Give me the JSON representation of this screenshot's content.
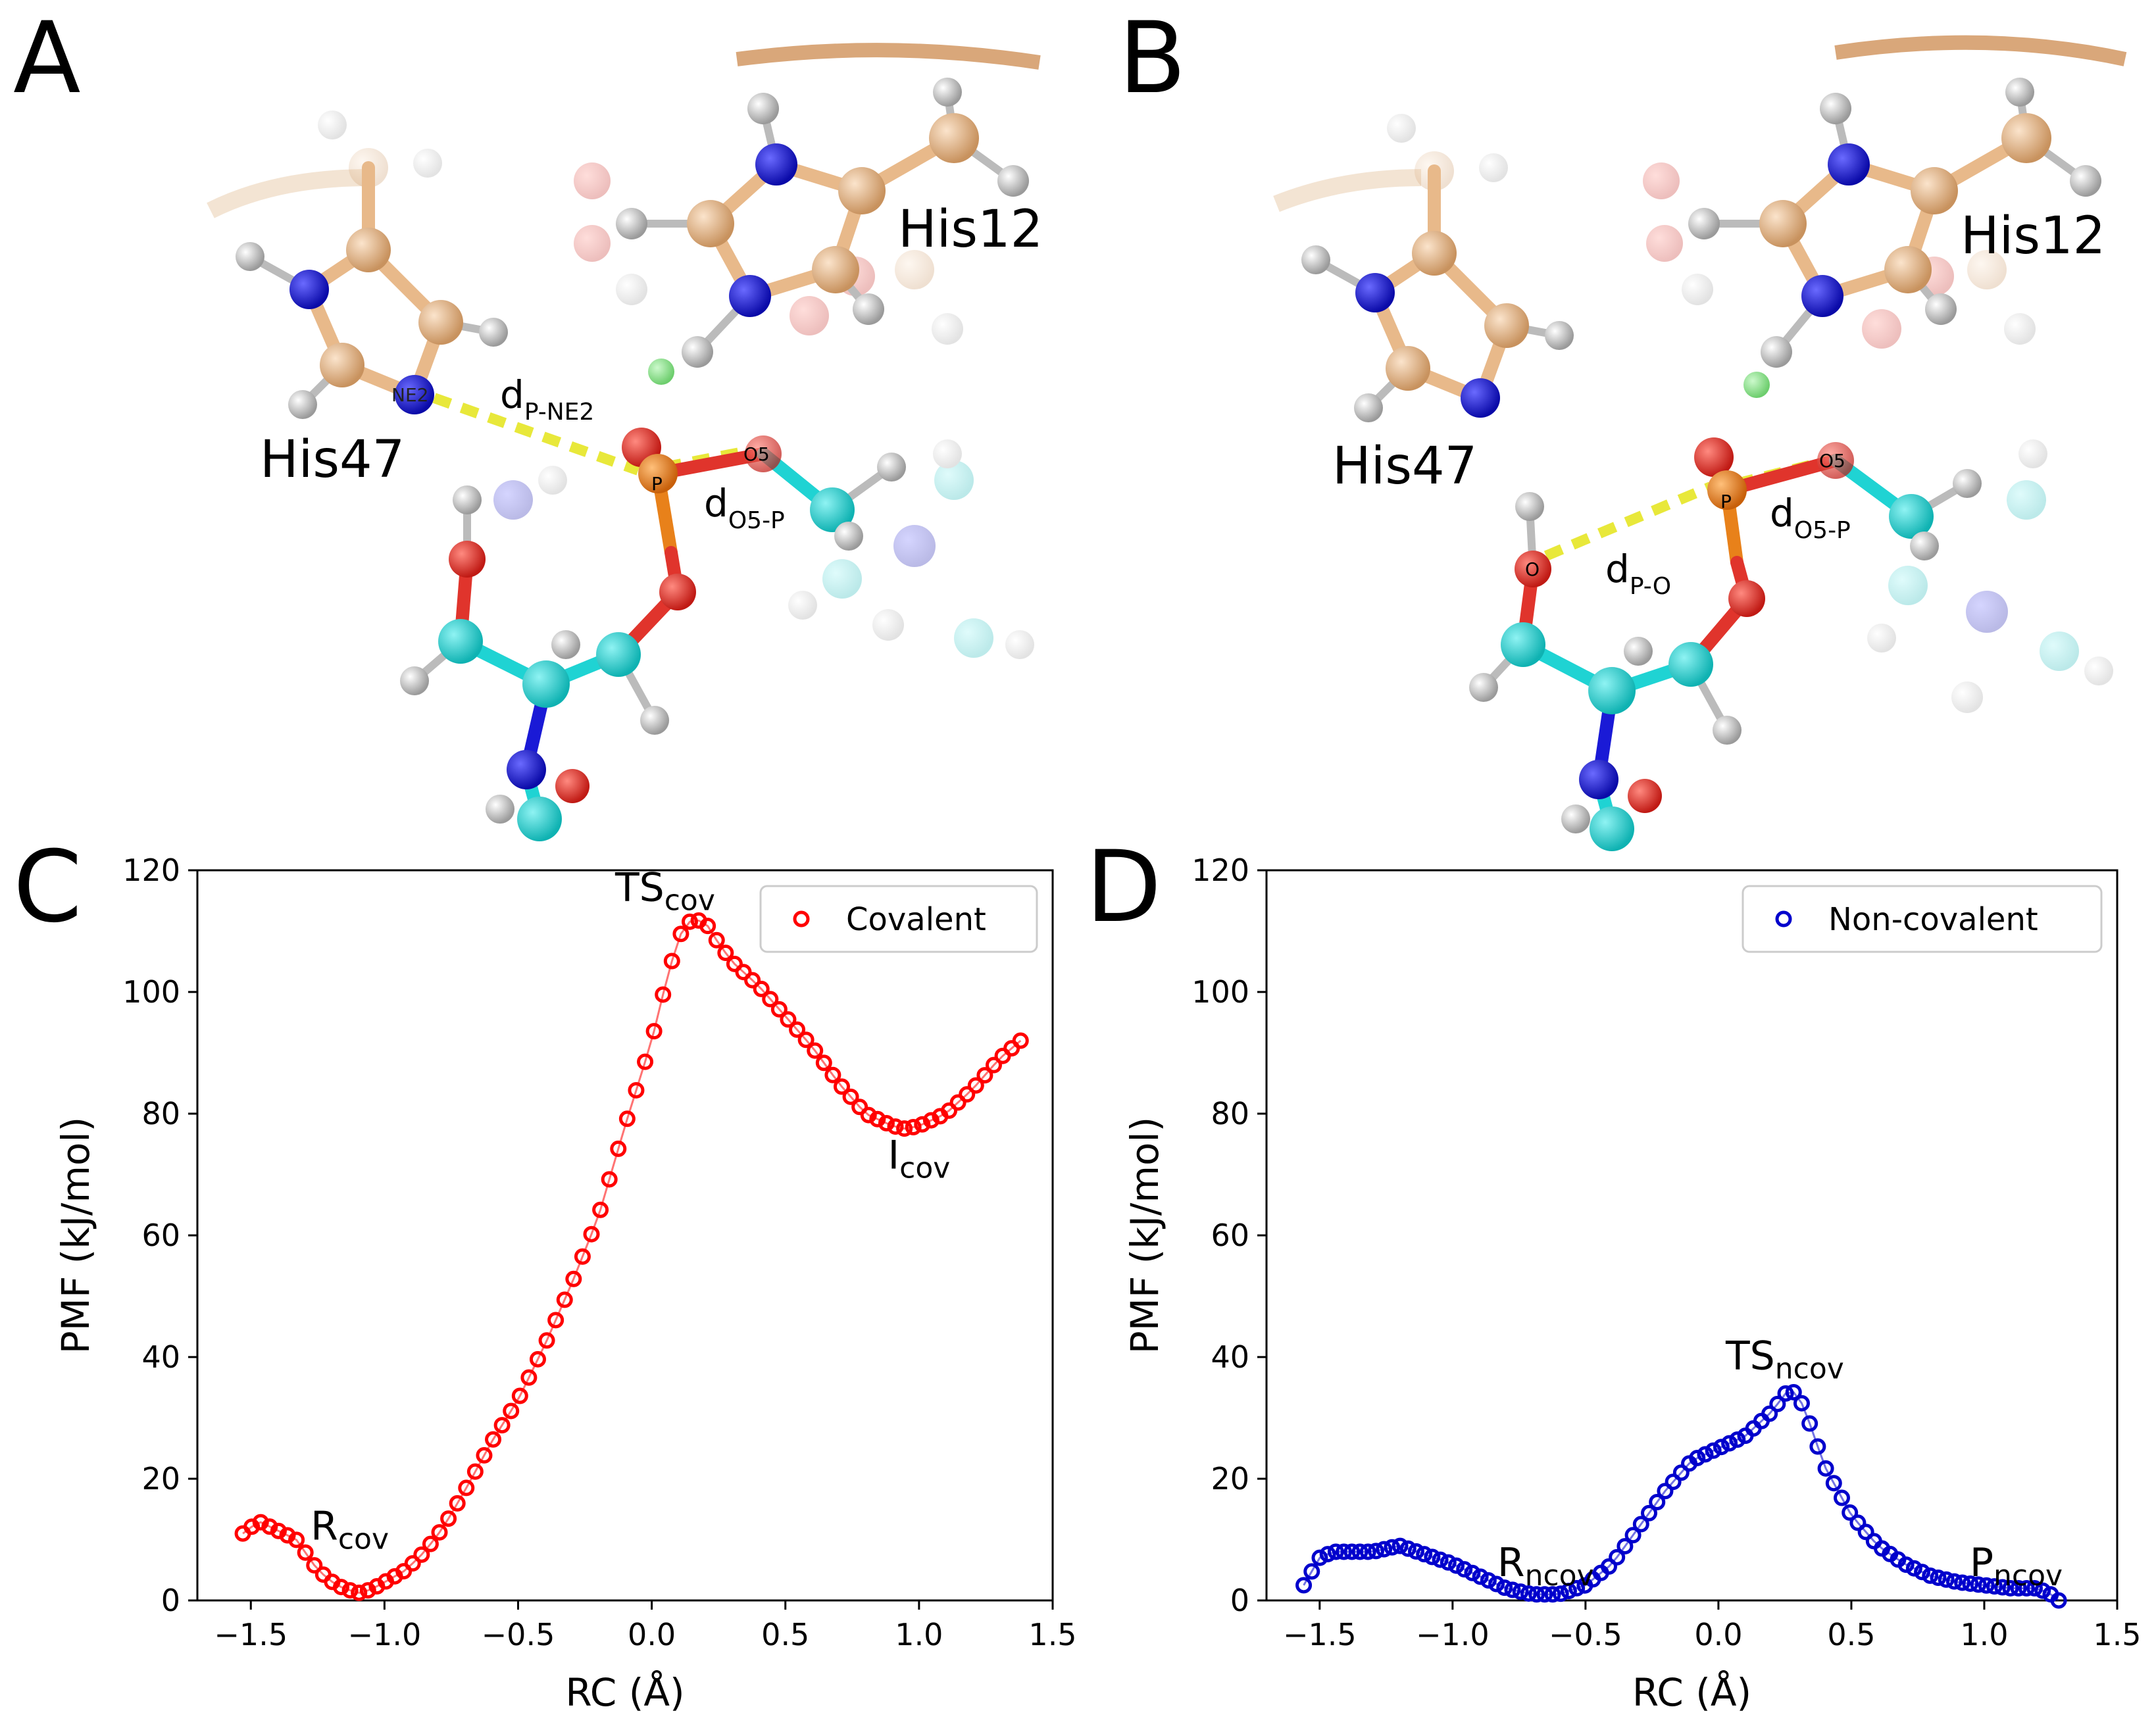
{
  "panel_letters": {
    "a": "A",
    "b": "B",
    "c": "C",
    "d": "D"
  },
  "colors": {
    "carbon_tan": "#e8b98a",
    "carbon_cyan": "#1fd3d3",
    "nitrogen": "#1a1ad6",
    "oxygen": "#e0342c",
    "phosphorus": "#e8811a",
    "hydrogen": "#e6e6e6",
    "chlorine": "#4cd64c",
    "distance": "#e8e83a",
    "backbone": "#d9a77a",
    "covalent": "#ff0000",
    "noncovalent": "#0000cc"
  },
  "structure_a": {
    "his12": "His12",
    "his47": "His47",
    "atoms": {
      "ne2": "NE2",
      "p": "P",
      "o5": "O5"
    },
    "d1": {
      "main": "d",
      "sub": "P-NE2"
    },
    "d2": {
      "main": "d",
      "sub": "O5-P"
    }
  },
  "structure_b": {
    "his12": "His12",
    "his47": "His47",
    "atoms": {
      "p": "P",
      "o5": "O5",
      "o": "O"
    },
    "d1": {
      "main": "d",
      "sub": "O5-P"
    },
    "d2": {
      "main": "d",
      "sub": "P-O"
    }
  },
  "chart_data": [
    {
      "type": "scatter",
      "panel": "C",
      "xlabel": "RC (Å)",
      "ylabel": "PMF (kJ/mol)",
      "xlim": [
        -1.7,
        1.5
      ],
      "ylim": [
        0,
        120
      ],
      "xticks": [
        "−1.5",
        "−1.0",
        "−0.5",
        "0.0",
        "0.5",
        "1.0",
        "1.5"
      ],
      "xtick_values": [
        -1.5,
        -1.0,
        -0.5,
        0.0,
        0.5,
        1.0,
        1.5
      ],
      "yticks": [
        "0",
        "20",
        "40",
        "60",
        "80",
        "100",
        "120"
      ],
      "ytick_values": [
        0,
        20,
        40,
        60,
        80,
        100,
        120
      ],
      "legend": {
        "label": "Covalent",
        "position": "top-right"
      },
      "color": "#ff0000",
      "annotations": [
        {
          "main": "TS",
          "sub": "cov",
          "x": 0.05,
          "y": 115
        },
        {
          "main": "R",
          "sub": "cov",
          "x": -1.13,
          "y": 10
        },
        {
          "main": "I",
          "sub": "cov",
          "x": 1.0,
          "y": 71
        }
      ],
      "anchors": [
        [
          -1.53,
          11
        ],
        [
          -1.47,
          13
        ],
        [
          -1.4,
          11.5
        ],
        [
          -1.33,
          10
        ],
        [
          -1.25,
          5
        ],
        [
          -1.18,
          2.5
        ],
        [
          -1.1,
          1.2
        ],
        [
          -1.05,
          1.8
        ],
        [
          -1.0,
          3
        ],
        [
          -0.92,
          5
        ],
        [
          -0.85,
          8
        ],
        [
          -0.78,
          12
        ],
        [
          -0.7,
          18
        ],
        [
          -0.6,
          26
        ],
        [
          -0.5,
          33
        ],
        [
          -0.4,
          42
        ],
        [
          -0.3,
          52
        ],
        [
          -0.2,
          63
        ],
        [
          -0.1,
          78
        ],
        [
          0.0,
          92
        ],
        [
          0.05,
          101
        ],
        [
          0.1,
          109
        ],
        [
          0.15,
          112
        ],
        [
          0.2,
          111.5
        ],
        [
          0.25,
          108
        ],
        [
          0.3,
          105
        ],
        [
          0.4,
          101
        ],
        [
          0.5,
          96
        ],
        [
          0.6,
          91
        ],
        [
          0.7,
          85
        ],
        [
          0.8,
          80
        ],
        [
          0.9,
          78
        ],
        [
          0.95,
          77.5
        ],
        [
          1.0,
          78
        ],
        [
          1.1,
          80
        ],
        [
          1.2,
          84
        ],
        [
          1.3,
          89
        ],
        [
          1.38,
          92
        ]
      ],
      "n_points": 88
    },
    {
      "type": "scatter",
      "panel": "D",
      "xlabel": "RC (Å)",
      "ylabel": "PMF (kJ/mol)",
      "xlim": [
        -1.7,
        1.5
      ],
      "ylim": [
        0,
        120
      ],
      "xticks": [
        "−1.5",
        "−1.0",
        "−0.5",
        "0.0",
        "0.5",
        "1.0",
        "1.5"
      ],
      "xtick_values": [
        -1.5,
        -1.0,
        -0.5,
        0.0,
        0.5,
        1.0,
        1.5
      ],
      "yticks": [
        "0",
        "20",
        "40",
        "60",
        "80",
        "100",
        "120"
      ],
      "ytick_values": [
        0,
        20,
        40,
        60,
        80,
        100,
        120
      ],
      "legend": {
        "label": "Non-covalent",
        "position": "top-right"
      },
      "color": "#0000cc",
      "annotations": [
        {
          "main": "TS",
          "sub": "ncov",
          "x": 0.25,
          "y": 38
        },
        {
          "main": "R",
          "sub": "ncov",
          "x": -0.65,
          "y": 4
        },
        {
          "main": "P",
          "sub": "ncov",
          "x": 1.12,
          "y": 4
        }
      ],
      "anchors": [
        [
          -1.56,
          2.5
        ],
        [
          -1.5,
          7
        ],
        [
          -1.45,
          8
        ],
        [
          -1.4,
          8
        ],
        [
          -1.3,
          8
        ],
        [
          -1.2,
          9
        ],
        [
          -1.1,
          7.5
        ],
        [
          -1.0,
          6
        ],
        [
          -0.9,
          4
        ],
        [
          -0.8,
          2
        ],
        [
          -0.7,
          1
        ],
        [
          -0.6,
          1
        ],
        [
          -0.5,
          2.5
        ],
        [
          -0.4,
          6
        ],
        [
          -0.3,
          12
        ],
        [
          -0.2,
          18
        ],
        [
          -0.1,
          23
        ],
        [
          0.0,
          25
        ],
        [
          0.1,
          27
        ],
        [
          0.2,
          31
        ],
        [
          0.27,
          35
        ],
        [
          0.32,
          32
        ],
        [
          0.4,
          22
        ],
        [
          0.5,
          14
        ],
        [
          0.6,
          9
        ],
        [
          0.7,
          6
        ],
        [
          0.8,
          4
        ],
        [
          0.9,
          3
        ],
        [
          1.0,
          2.5
        ],
        [
          1.1,
          2
        ],
        [
          1.2,
          2
        ],
        [
          1.25,
          1
        ],
        [
          1.28,
          0
        ]
      ],
      "n_points": 95
    }
  ]
}
